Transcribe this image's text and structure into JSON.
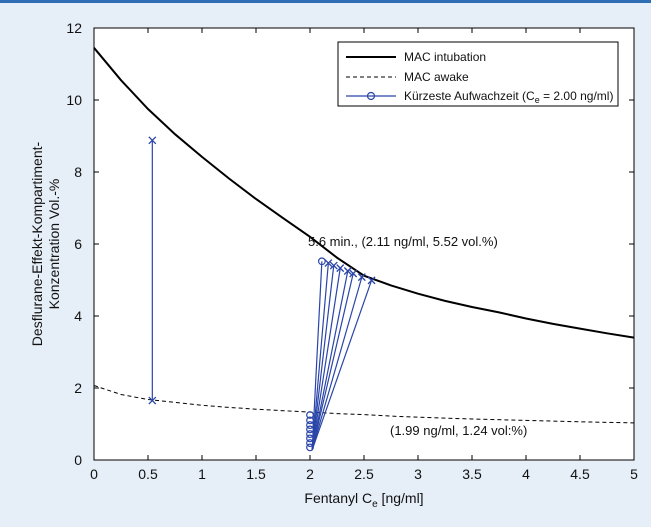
{
  "chart_data": {
    "type": "line",
    "xlabel": "Fentanyl C",
    "xlabel_sub": "e",
    "xlabel_unit": " [ng/ml]",
    "ylabel_line1": "Desflurane-Effekt-Kompartiment-",
    "ylabel_line2": "Konzentration Vol.-%",
    "xlim": [
      0,
      5
    ],
    "ylim": [
      0,
      12
    ],
    "x_ticks": [
      "0",
      "0.5",
      "1",
      "1.5",
      "2",
      "2.5",
      "3",
      "3.5",
      "4",
      "4.5",
      "5"
    ],
    "y_ticks": [
      "0",
      "2",
      "4",
      "6",
      "8",
      "10",
      "12"
    ],
    "grid": false,
    "legend_position": "top-right",
    "legend": [
      {
        "label": "MAC intubation"
      },
      {
        "label": "MAC awake"
      },
      {
        "label_main": "Kürzeste Aufwachzeit (C",
        "label_sub": "e",
        "label_end": " = 2.00 ng/ml)"
      }
    ],
    "series": [
      {
        "name": "MAC intubation",
        "style": "solid",
        "color": "#000000",
        "points": [
          [
            0,
            11.45
          ],
          [
            0.25,
            10.55
          ],
          [
            0.5,
            9.75
          ],
          [
            0.75,
            9.05
          ],
          [
            1.0,
            8.42
          ],
          [
            1.25,
            7.82
          ],
          [
            1.5,
            7.25
          ],
          [
            1.75,
            6.72
          ],
          [
            2.0,
            6.2
          ],
          [
            2.25,
            5.62
          ],
          [
            2.5,
            5.12
          ],
          [
            2.75,
            4.85
          ],
          [
            3.0,
            4.62
          ],
          [
            3.25,
            4.42
          ],
          [
            3.5,
            4.25
          ],
          [
            3.75,
            4.1
          ],
          [
            4.0,
            3.93
          ],
          [
            4.25,
            3.78
          ],
          [
            4.5,
            3.65
          ],
          [
            4.75,
            3.52
          ],
          [
            5.0,
            3.4
          ]
        ]
      },
      {
        "name": "MAC awake",
        "style": "dashed",
        "color": "#000000",
        "points": [
          [
            0,
            2.07
          ],
          [
            0.25,
            1.82
          ],
          [
            0.5,
            1.68
          ],
          [
            0.75,
            1.6
          ],
          [
            1.0,
            1.52
          ],
          [
            1.25,
            1.46
          ],
          [
            1.5,
            1.41
          ],
          [
            1.75,
            1.37
          ],
          [
            2.0,
            1.33
          ],
          [
            2.25,
            1.29
          ],
          [
            2.5,
            1.26
          ],
          [
            2.75,
            1.22
          ],
          [
            3.0,
            1.19
          ],
          [
            3.5,
            1.14
          ],
          [
            4.0,
            1.1
          ],
          [
            4.5,
            1.06
          ],
          [
            5.0,
            1.03
          ]
        ]
      }
    ],
    "vertical_segment": {
      "x": 0.54,
      "y_top": 8.88,
      "y_bottom": 1.65
    },
    "fan_origins": [
      [
        2.0,
        1.25
      ],
      [
        2.0,
        1.1
      ],
      [
        2.0,
        0.97
      ],
      [
        2.0,
        0.85
      ],
      [
        2.0,
        0.72
      ],
      [
        2.0,
        0.6
      ],
      [
        2.0,
        0.47
      ],
      [
        2.0,
        0.35
      ]
    ],
    "fan_top_points": [
      [
        2.11,
        5.52
      ],
      [
        2.17,
        5.47
      ],
      [
        2.22,
        5.4
      ],
      [
        2.28,
        5.33
      ],
      [
        2.35,
        5.25
      ],
      [
        2.4,
        5.18
      ],
      [
        2.48,
        5.08
      ],
      [
        2.57,
        4.99
      ]
    ],
    "fan_convergence": [
      2.02,
      0.28
    ],
    "annotations": [
      {
        "text": "5.6 min., (2.11 ng/ml, 5.52 vol.%)",
        "x": 2.11,
        "y": 5.52
      },
      {
        "text": "(1.99 ng/ml, 1.24 vol:%)",
        "x": 1.99,
        "y": 1.24
      }
    ],
    "colors": {
      "background": "#e6eef7",
      "accent": "#2f6db5",
      "series_blue": "#2a45a8"
    }
  }
}
